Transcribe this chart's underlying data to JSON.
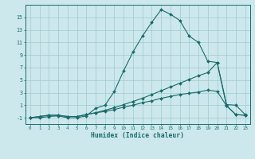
{
  "background_color": "#cce8ec",
  "grid_color": "#a0c8d0",
  "line_color": "#1a6b6b",
  "xlim": [
    -0.5,
    23.5
  ],
  "ylim": [
    -2.0,
    17.0
  ],
  "xticks": [
    0,
    1,
    2,
    3,
    4,
    5,
    6,
    7,
    8,
    9,
    10,
    11,
    12,
    13,
    14,
    15,
    16,
    17,
    18,
    19,
    20,
    21,
    22,
    23
  ],
  "yticks": [
    -1,
    1,
    3,
    5,
    7,
    9,
    11,
    13,
    15
  ],
  "xlabel": "Humidex (Indice chaleur)",
  "line1_x": [
    0,
    1,
    2,
    3,
    4,
    5,
    6,
    7,
    8,
    9,
    10,
    11,
    12,
    13,
    14,
    15,
    16,
    17,
    18,
    19,
    20,
    21,
    22,
    23
  ],
  "line1_y": [
    -1,
    -1,
    -0.8,
    -0.7,
    -1,
    -1,
    -0.7,
    0.5,
    1.0,
    3.2,
    6.5,
    9.5,
    12.0,
    14.2,
    16.2,
    15.5,
    14.5,
    12.0,
    11.0,
    8.0,
    7.8,
    1.1,
    1.0,
    -0.5
  ],
  "line2_x": [
    0,
    1,
    2,
    3,
    4,
    5,
    6,
    7,
    8,
    9,
    10,
    11,
    12,
    13,
    14,
    15,
    16,
    17,
    18,
    19,
    20,
    21,
    22,
    23
  ],
  "line2_y": [
    -1,
    -0.8,
    -0.6,
    -0.6,
    -0.8,
    -0.8,
    -0.5,
    -0.2,
    0.2,
    0.6,
    1.1,
    1.6,
    2.1,
    2.7,
    3.3,
    3.9,
    4.5,
    5.1,
    5.7,
    6.2,
    7.8,
    0.9,
    -0.5,
    -0.6
  ],
  "line3_x": [
    0,
    1,
    2,
    3,
    4,
    5,
    6,
    7,
    8,
    9,
    10,
    11,
    12,
    13,
    14,
    15,
    16,
    17,
    18,
    19,
    20,
    21,
    22,
    23
  ],
  "line3_y": [
    -1,
    -0.8,
    -0.6,
    -0.6,
    -0.8,
    -0.8,
    -0.5,
    -0.2,
    0.0,
    0.3,
    0.7,
    1.0,
    1.4,
    1.7,
    2.1,
    2.4,
    2.7,
    2.9,
    3.1,
    3.4,
    3.2,
    0.9,
    -0.5,
    -0.6
  ]
}
